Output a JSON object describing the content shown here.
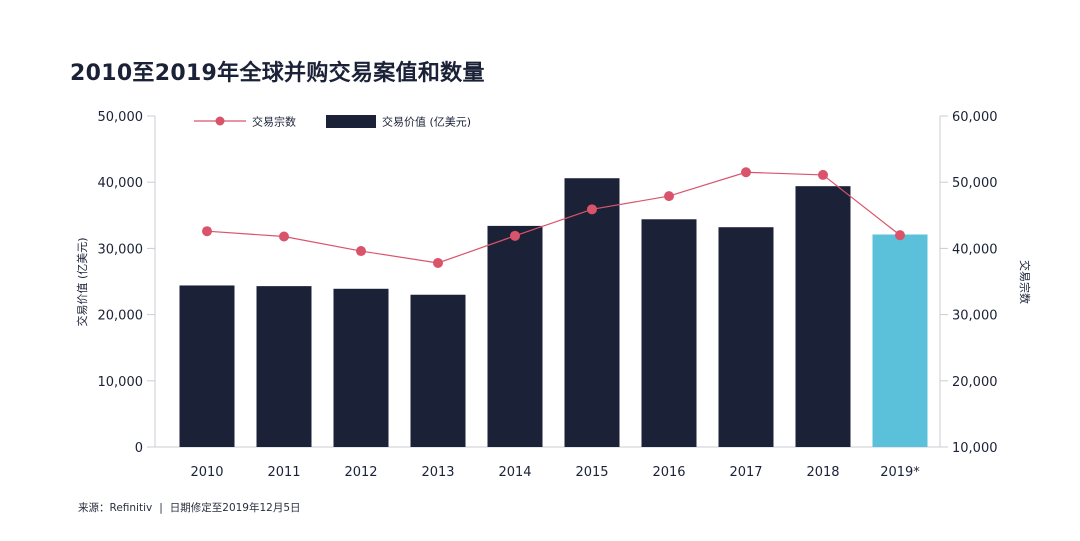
{
  "chart_data": {
    "title": "2010至2019年全球并购交易案值和数量",
    "type": "bar",
    "categories": [
      "2010",
      "2011",
      "2012",
      "2013",
      "2014",
      "2015",
      "2016",
      "2017",
      "2018",
      "2019*"
    ],
    "series": [
      {
        "name": "交易价值 (亿美元)",
        "type": "bar",
        "axis": "left",
        "color": "#1b2238",
        "highlight_color": "#5bc0da",
        "highlight_index": 9,
        "values": [
          24400,
          24300,
          23900,
          23000,
          33400,
          40600,
          34400,
          33200,
          39400,
          32100
        ]
      },
      {
        "name": "交易宗数",
        "type": "line",
        "axis": "right",
        "color": "#d9546b",
        "values": [
          42600,
          41800,
          39600,
          37800,
          41900,
          45900,
          47900,
          51500,
          51100,
          42000
        ]
      }
    ],
    "left_axis": {
      "label": "交易价值 (亿美元)",
      "ylim": [
        0,
        50000
      ],
      "ticks": [
        "0",
        "10,000",
        "20,000",
        "30,000",
        "40,000",
        "50,000"
      ]
    },
    "right_axis": {
      "label": "交易宗数",
      "ylim": [
        10000,
        60000
      ],
      "ticks": [
        "10,000",
        "20,000",
        "30,000",
        "40,000",
        "50,000",
        "60,000"
      ]
    },
    "legend_position": "top-left",
    "grid": false
  },
  "footer": {
    "source": "来源：Refinitiv",
    "separator": "|",
    "note": "日期修定至2019年12月5日"
  }
}
